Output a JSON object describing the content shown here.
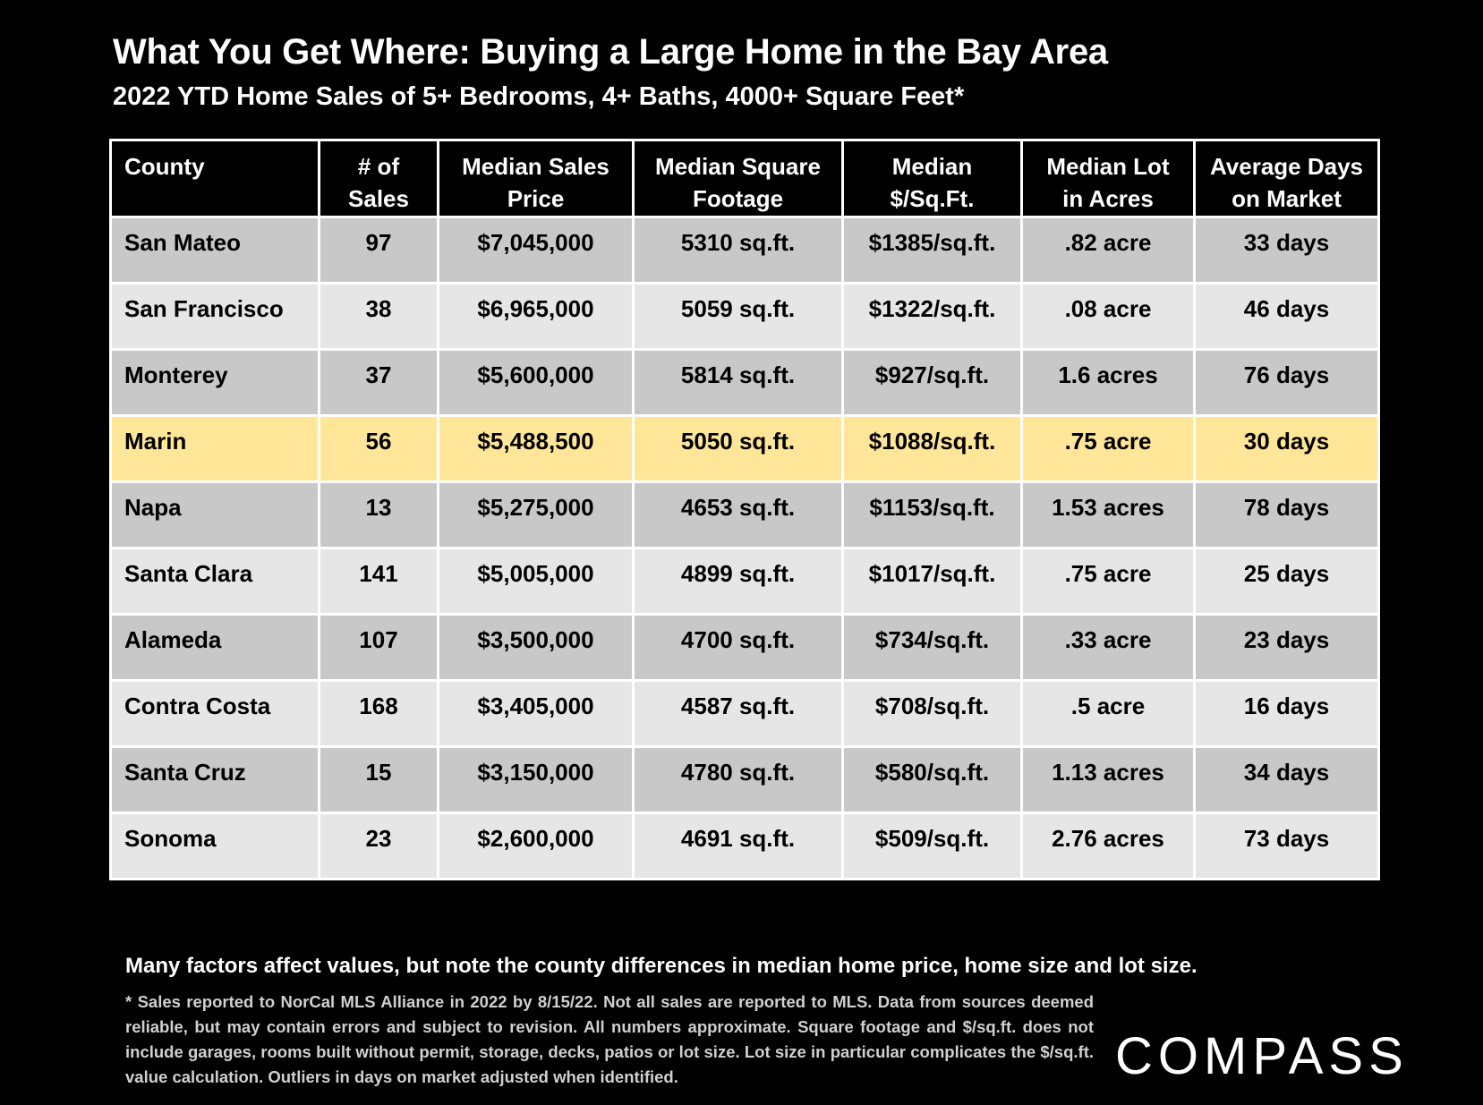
{
  "header": {
    "title": "What You Get Where: Buying a Large Home in the Bay Area",
    "subtitle": "2022 YTD Home Sales of 5+ Bedrooms, 4+ Baths, 4000+ Square Feet*"
  },
  "table": {
    "columns": [
      [
        "County"
      ],
      [
        "# of",
        "Sales"
      ],
      [
        "Median Sales",
        "Price"
      ],
      [
        "Median Square",
        "Footage"
      ],
      [
        "Median",
        "$/Sq.Ft."
      ],
      [
        "Median Lot",
        "in Acres"
      ],
      [
        "Average Days",
        "on Market"
      ]
    ],
    "highlight_color": "#ffe699",
    "rows": [
      [
        "San Mateo",
        "97",
        "$7,045,000",
        "5310 sq.ft.",
        "$1385/sq.ft.",
        ".82 acre",
        "33 days"
      ],
      [
        "San Francisco",
        "38",
        "$6,965,000",
        "5059 sq.ft.",
        "$1322/sq.ft.",
        ".08 acre",
        "46 days"
      ],
      [
        "Monterey",
        "37",
        "$5,600,000",
        "5814 sq.ft.",
        "$927/sq.ft.",
        "1.6 acres",
        "76 days"
      ],
      [
        "Marin",
        "56",
        "$5,488,500",
        "5050 sq.ft.",
        "$1088/sq.ft.",
        ".75 acre",
        "30 days"
      ],
      [
        "Napa",
        "13",
        "$5,275,000",
        "4653 sq.ft.",
        "$1153/sq.ft.",
        "1.53 acres",
        "78 days"
      ],
      [
        "Santa Clara",
        "141",
        "$5,005,000",
        "4899 sq.ft.",
        "$1017/sq.ft.",
        ".75 acre",
        "25 days"
      ],
      [
        "Alameda",
        "107",
        "$3,500,000",
        "4700 sq.ft.",
        "$734/sq.ft.",
        ".33 acre",
        "23 days"
      ],
      [
        "Contra Costa",
        "168",
        "$3,405,000",
        "4587 sq.ft.",
        "$708/sq.ft.",
        ".5 acre",
        "16 days"
      ],
      [
        "Santa Cruz",
        "15",
        "$3,150,000",
        "4780 sq.ft.",
        "$580/sq.ft.",
        "1.13 acres",
        "34 days"
      ],
      [
        "Sonoma",
        "23",
        "$2,600,000",
        "4691 sq.ft.",
        "$509/sq.ft.",
        "2.76 acres",
        "73 days"
      ]
    ]
  },
  "footer": {
    "note": "Many factors affect values, but note the county differences in median home price, home size and lot size.",
    "footnote": "* Sales reported to NorCal MLS Alliance in 2022 by 8/15/22. Not all sales are reported to MLS. Data from sources deemed reliable, but may contain errors and subject to revision. All numbers approximate. Square footage and $/sq.ft. does not include garages, rooms built without permit, storage, decks, patios or lot size. Lot size in particular complicates the $/sq.ft. value calculation. Outliers in days on market adjusted when identified.",
    "logo_text": "COMPASS"
  }
}
